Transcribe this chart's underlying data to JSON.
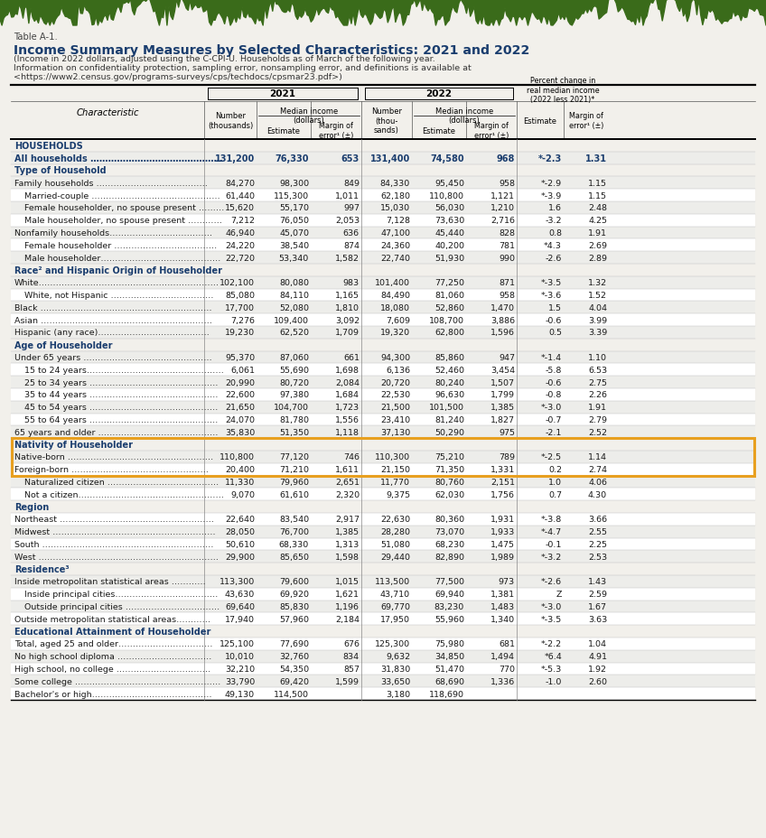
{
  "table_label": "Table A-1.",
  "title": "Income Summary Measures by Selected Characteristics: 2021 and 2022",
  "subtitle_lines": [
    "(Income in 2022 dollars, adjusted using the C-CPI-U. Households as of March of the following year.",
    "Information on confidentiality protection, sampling error, nonsampling error, and definitions is available at",
    "<https://www2.census.gov/programs-surveys/cps/techdocs/cpsmar23.pdf>)"
  ],
  "rows": [
    {
      "label": "HOUSEHOLDS",
      "indent": 0,
      "bold": true,
      "section_header": true,
      "values": [
        "",
        "",
        "",
        "",
        "",
        "",
        "",
        ""
      ]
    },
    {
      "label": "All households ………………………………………",
      "indent": 0,
      "bold": true,
      "blue": true,
      "values": [
        "131,200",
        "76,330",
        "653",
        "131,400",
        "74,580",
        "968",
        "*-2.3",
        "1.31"
      ]
    },
    {
      "label": "Type of Household",
      "indent": 0,
      "bold": true,
      "section_header": true,
      "values": [
        "",
        "",
        "",
        "",
        "",
        "",
        "",
        ""
      ]
    },
    {
      "label": "Family households …………………………………",
      "indent": 0,
      "bold": false,
      "values": [
        "84,270",
        "98,300",
        "849",
        "84,330",
        "95,450",
        "958",
        "*-2.9",
        "1.15"
      ]
    },
    {
      "label": "Married-couple ………………………………………",
      "indent": 1,
      "bold": false,
      "values": [
        "61,440",
        "115,300",
        "1,011",
        "62,180",
        "110,800",
        "1,121",
        "*-3.9",
        "1.15"
      ]
    },
    {
      "label": "Female householder, no spouse present ………",
      "indent": 1,
      "bold": false,
      "values": [
        "15,620",
        "55,170",
        "997",
        "15,030",
        "56,030",
        "1,210",
        "1.6",
        "2.48"
      ]
    },
    {
      "label": "Male householder, no spouse present …………",
      "indent": 1,
      "bold": false,
      "values": [
        "7,212",
        "76,050",
        "2,053",
        "7,128",
        "73,630",
        "2,716",
        "-3.2",
        "4.25"
      ]
    },
    {
      "label": "Nonfamily households………………………………",
      "indent": 0,
      "bold": false,
      "values": [
        "46,940",
        "45,070",
        "636",
        "47,100",
        "45,440",
        "828",
        "0.8",
        "1.91"
      ]
    },
    {
      "label": "Female householder ………………………………",
      "indent": 1,
      "bold": false,
      "values": [
        "24,220",
        "38,540",
        "874",
        "24,360",
        "40,200",
        "781",
        "*4.3",
        "2.69"
      ]
    },
    {
      "label": "Male householder……………………………………",
      "indent": 1,
      "bold": false,
      "values": [
        "22,720",
        "53,340",
        "1,582",
        "22,740",
        "51,930",
        "990",
        "-2.6",
        "2.89"
      ]
    },
    {
      "label": "Race² and Hispanic Origin of Householder",
      "indent": 0,
      "bold": true,
      "section_header": true,
      "values": [
        "",
        "",
        "",
        "",
        "",
        "",
        "",
        ""
      ]
    },
    {
      "label": "White………………………………………………………",
      "indent": 0,
      "bold": false,
      "values": [
        "102,100",
        "80,080",
        "983",
        "101,400",
        "77,250",
        "871",
        "*-3.5",
        "1.32"
      ]
    },
    {
      "label": "White, not Hispanic ………………………………",
      "indent": 1,
      "bold": false,
      "values": [
        "85,080",
        "84,110",
        "1,165",
        "84,490",
        "81,060",
        "958",
        "*-3.6",
        "1.52"
      ]
    },
    {
      "label": "Black ……………………………………………………",
      "indent": 0,
      "bold": false,
      "values": [
        "17,700",
        "52,080",
        "1,810",
        "18,080",
        "52,860",
        "1,470",
        "1.5",
        "4.04"
      ]
    },
    {
      "label": "Asian ……………………………………………………",
      "indent": 0,
      "bold": false,
      "values": [
        "7,276",
        "109,400",
        "3,092",
        "7,609",
        "108,700",
        "3,886",
        "-0.6",
        "3.99"
      ]
    },
    {
      "label": "Hispanic (any race)…………………………………",
      "indent": 0,
      "bold": false,
      "values": [
        "19,230",
        "62,520",
        "1,709",
        "19,320",
        "62,800",
        "1,596",
        "0.5",
        "3.39"
      ]
    },
    {
      "label": "Age of Householder",
      "indent": 0,
      "bold": true,
      "section_header": true,
      "values": [
        "",
        "",
        "",
        "",
        "",
        "",
        "",
        ""
      ]
    },
    {
      "label": "Under 65 years ………………………………………",
      "indent": 0,
      "bold": false,
      "values": [
        "95,370",
        "87,060",
        "661",
        "94,300",
        "85,860",
        "947",
        "*-1.4",
        "1.10"
      ]
    },
    {
      "label": "15 to 24 years…………………………………………",
      "indent": 1,
      "bold": false,
      "values": [
        "6,061",
        "55,690",
        "1,698",
        "6,136",
        "52,460",
        "3,454",
        "-5.8",
        "6.53"
      ]
    },
    {
      "label": "25 to 34 years ………………………………………",
      "indent": 1,
      "bold": false,
      "values": [
        "20,990",
        "80,720",
        "2,084",
        "20,720",
        "80,240",
        "1,507",
        "-0.6",
        "2.75"
      ]
    },
    {
      "label": "35 to 44 years ………………………………………",
      "indent": 1,
      "bold": false,
      "values": [
        "22,600",
        "97,380",
        "1,684",
        "22,530",
        "96,630",
        "1,799",
        "-0.8",
        "2.26"
      ]
    },
    {
      "label": "45 to 54 years ………………………………………",
      "indent": 1,
      "bold": false,
      "values": [
        "21,650",
        "104,700",
        "1,723",
        "21,500",
        "101,500",
        "1,385",
        "*-3.0",
        "1.91"
      ]
    },
    {
      "label": "55 to 64 years ………………………………………",
      "indent": 1,
      "bold": false,
      "values": [
        "24,070",
        "81,780",
        "1,556",
        "23,410",
        "81,240",
        "1,827",
        "-0.7",
        "2.79"
      ]
    },
    {
      "label": "65 years and older ……………………………………",
      "indent": 0,
      "bold": false,
      "values": [
        "35,830",
        "51,350",
        "1,118",
        "37,130",
        "50,290",
        "975",
        "-2.1",
        "2.52"
      ]
    },
    {
      "label": "Nativity of Householder",
      "indent": 0,
      "bold": true,
      "section_header": true,
      "highlight": true,
      "values": [
        "",
        "",
        "",
        "",
        "",
        "",
        "",
        ""
      ]
    },
    {
      "label": "Native-born ……………………………………………",
      "indent": 0,
      "bold": false,
      "highlight": true,
      "values": [
        "110,800",
        "77,120",
        "746",
        "110,300",
        "75,210",
        "789",
        "*-2.5",
        "1.14"
      ]
    },
    {
      "label": "Foreign-born …………………………………………",
      "indent": 0,
      "bold": false,
      "highlight": true,
      "values": [
        "20,400",
        "71,210",
        "1,611",
        "21,150",
        "71,350",
        "1,331",
        "0.2",
        "2.74"
      ]
    },
    {
      "label": "Naturalized citizen …………………………………",
      "indent": 1,
      "bold": false,
      "values": [
        "11,330",
        "79,960",
        "2,651",
        "11,770",
        "80,760",
        "2,151",
        "1.0",
        "4.06"
      ]
    },
    {
      "label": "Not a citizen……………………………………………",
      "indent": 1,
      "bold": false,
      "values": [
        "9,070",
        "61,610",
        "2,320",
        "9,375",
        "62,030",
        "1,756",
        "0.7",
        "4.30"
      ]
    },
    {
      "label": "Region",
      "indent": 0,
      "bold": true,
      "section_header": true,
      "values": [
        "",
        "",
        "",
        "",
        "",
        "",
        "",
        ""
      ]
    },
    {
      "label": "Northeast ………………………………………………",
      "indent": 0,
      "bold": false,
      "values": [
        "22,640",
        "83,540",
        "2,917",
        "22,630",
        "80,360",
        "1,931",
        "*-3.8",
        "3.66"
      ]
    },
    {
      "label": "Midwest …………………………………………………",
      "indent": 0,
      "bold": false,
      "values": [
        "28,050",
        "76,700",
        "1,385",
        "28,280",
        "73,070",
        "1,933",
        "*-4.7",
        "2.55"
      ]
    },
    {
      "label": "South ……………………………………………………",
      "indent": 0,
      "bold": false,
      "values": [
        "50,610",
        "68,330",
        "1,313",
        "51,080",
        "68,230",
        "1,475",
        "-0.1",
        "2.25"
      ]
    },
    {
      "label": "West ………………………………………………………",
      "indent": 0,
      "bold": false,
      "values": [
        "29,900",
        "85,650",
        "1,598",
        "29,440",
        "82,890",
        "1,989",
        "*-3.2",
        "2.53"
      ]
    },
    {
      "label": "Residence³",
      "indent": 0,
      "bold": true,
      "section_header": true,
      "values": [
        "",
        "",
        "",
        "",
        "",
        "",
        "",
        ""
      ]
    },
    {
      "label": "Inside metropolitan statistical areas …………",
      "indent": 0,
      "bold": false,
      "values": [
        "113,300",
        "79,600",
        "1,015",
        "113,500",
        "77,500",
        "973",
        "*-2.6",
        "1.43"
      ]
    },
    {
      "label": "Inside principal cities………………………………",
      "indent": 1,
      "bold": false,
      "values": [
        "43,630",
        "69,920",
        "1,621",
        "43,710",
        "69,940",
        "1,381",
        "Z",
        "2.59"
      ]
    },
    {
      "label": "Outside principal cities ……………………………",
      "indent": 1,
      "bold": false,
      "values": [
        "69,640",
        "85,830",
        "1,196",
        "69,770",
        "83,230",
        "1,483",
        "*-3.0",
        "1.67"
      ]
    },
    {
      "label": "Outside metropolitan statistical areas…………",
      "indent": 0,
      "bold": false,
      "values": [
        "17,940",
        "57,960",
        "2,184",
        "17,950",
        "55,960",
        "1,340",
        "*-3.5",
        "3.63"
      ]
    },
    {
      "label": "Educational Attainment of Householder",
      "indent": 0,
      "bold": true,
      "section_header": true,
      "values": [
        "",
        "",
        "",
        "",
        "",
        "",
        "",
        ""
      ]
    },
    {
      "label": "Total, aged 25 and older……………………………",
      "indent": 0,
      "bold": false,
      "values": [
        "125,100",
        "77,690",
        "676",
        "125,300",
        "75,980",
        "681",
        "*-2.2",
        "1.04"
      ]
    },
    {
      "label": "No high school diploma ……………………………",
      "indent": 0,
      "bold": false,
      "values": [
        "10,010",
        "32,760",
        "834",
        "9,632",
        "34,850",
        "1,494",
        "*6.4",
        "4.91"
      ]
    },
    {
      "label": "High school, no college ……………………………",
      "indent": 0,
      "bold": false,
      "values": [
        "32,210",
        "54,350",
        "857",
        "31,830",
        "51,470",
        "770",
        "*-5.3",
        "1.92"
      ]
    },
    {
      "label": "Some college ……………………………………………",
      "indent": 0,
      "bold": false,
      "values": [
        "33,790",
        "69,420",
        "1,599",
        "33,650",
        "68,690",
        "1,336",
        "-1.0",
        "2.60"
      ]
    },
    {
      "label": "Bachelor's or high……………………………………",
      "indent": 0,
      "bold": false,
      "partial": true,
      "values": [
        "49,130",
        "114,500",
        "",
        "3,180",
        "118,690",
        "",
        "",
        ""
      ]
    }
  ],
  "background_color": "#f2f0eb",
  "title_color": "#1a3d6e",
  "highlight_border_color": "#e8a020",
  "text_color": "#1a1a1a",
  "blue_row_color": "#1a3d6e",
  "torn_color": "#3a6b1a"
}
